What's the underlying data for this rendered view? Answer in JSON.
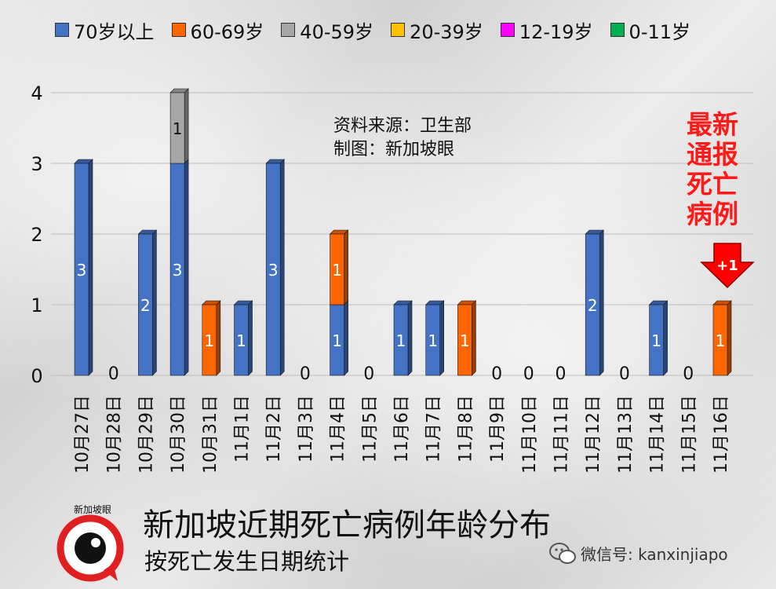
{
  "chart_data": {
    "type": "bar",
    "stacked": true,
    "categories": [
      "10月27日",
      "10月28日",
      "10月29日",
      "10月30日",
      "10月31日",
      "11月1日",
      "11月2日",
      "11月3日",
      "11月4日",
      "11月5日",
      "11月6日",
      "11月7日",
      "11月8日",
      "11月9日",
      "11月10日",
      "11月11日",
      "11月12日",
      "11月13日",
      "11月14日",
      "11月15日",
      "11月16日"
    ],
    "series": [
      {
        "name": "70岁以上",
        "color": "#4472c4",
        "values": [
          3,
          0,
          2,
          3,
          0,
          1,
          3,
          0,
          1,
          0,
          1,
          1,
          0,
          0,
          0,
          0,
          2,
          0,
          1,
          0,
          0
        ]
      },
      {
        "name": "60-69岁",
        "color": "#ff6600",
        "values": [
          0,
          0,
          0,
          0,
          1,
          0,
          0,
          0,
          1,
          0,
          0,
          0,
          1,
          0,
          0,
          0,
          0,
          0,
          0,
          0,
          1
        ]
      },
      {
        "name": "40-59岁",
        "color": "#a6a6a6",
        "values": [
          0,
          0,
          0,
          1,
          0,
          0,
          0,
          0,
          0,
          0,
          0,
          0,
          0,
          0,
          0,
          0,
          0,
          0,
          0,
          0,
          0
        ]
      },
      {
        "name": "20-39岁",
        "color": "#ffc000",
        "values": [
          0,
          0,
          0,
          0,
          0,
          0,
          0,
          0,
          0,
          0,
          0,
          0,
          0,
          0,
          0,
          0,
          0,
          0,
          0,
          0,
          0
        ]
      },
      {
        "name": "12-19岁",
        "color": "#ff00ff",
        "values": [
          0,
          0,
          0,
          0,
          0,
          0,
          0,
          0,
          0,
          0,
          0,
          0,
          0,
          0,
          0,
          0,
          0,
          0,
          0,
          0,
          0
        ]
      },
      {
        "name": "0-11岁",
        "color": "#00b050",
        "values": [
          0,
          0,
          0,
          0,
          0,
          0,
          0,
          0,
          0,
          0,
          0,
          0,
          0,
          0,
          0,
          0,
          0,
          0,
          0,
          0,
          0
        ]
      }
    ],
    "ylim": [
      0,
      4
    ],
    "yticks": [
      0,
      1,
      2,
      3,
      4
    ],
    "legend_position": "top",
    "grid": true,
    "title": "新加坡近期死亡病例年龄分布",
    "subtitle": "按死亡发生日期统计"
  },
  "source": {
    "line1": "资料来源：卫生部",
    "line2": "制图：新加坡眼"
  },
  "notice": {
    "lines": [
      "最新",
      "通报",
      "死亡",
      "病例"
    ],
    "arrow_label": "+1"
  },
  "logo": {
    "text": "新加坡眼"
  },
  "wechat": {
    "text": "微信号: kanxinjiapo"
  }
}
